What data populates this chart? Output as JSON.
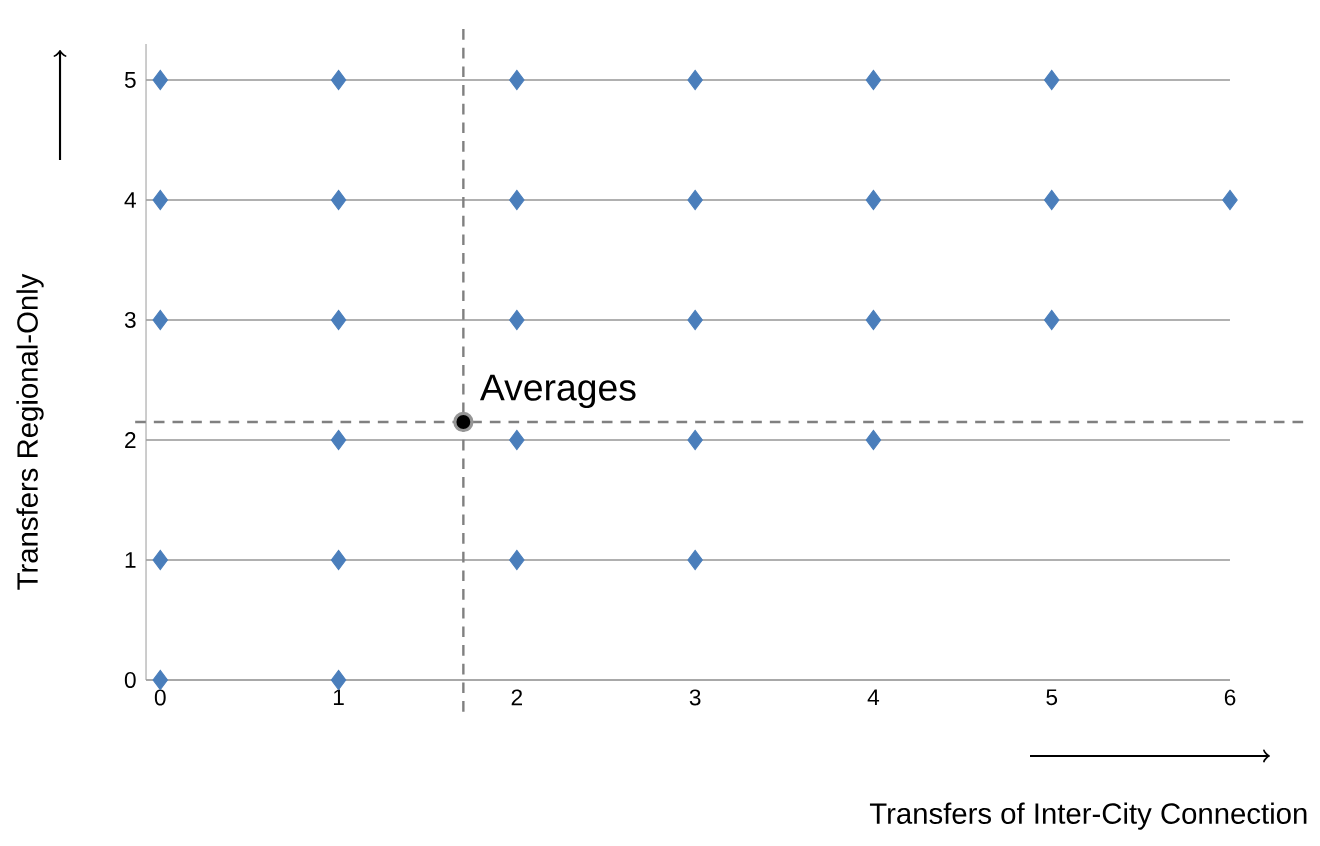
{
  "chart_data": {
    "type": "scatter",
    "xlabel": "Transfers of Inter-City Connection",
    "ylabel": "Transfers Regional-Only",
    "xlim": [
      -0.08,
      6
    ],
    "ylim": [
      0,
      5.3
    ],
    "xticks": [
      0,
      1,
      2,
      3,
      4,
      5,
      6
    ],
    "yticks": [
      0,
      1,
      2,
      3,
      4,
      5
    ],
    "grid": "y",
    "marker": "diamond",
    "series": [
      {
        "color": "#4a7ebb",
        "x": [
          0,
          1,
          2,
          3,
          4,
          5,
          0,
          1,
          2,
          3,
          4,
          5,
          6,
          0,
          1,
          2,
          3,
          4,
          5,
          1,
          2,
          3,
          4,
          0,
          1,
          2,
          3,
          0,
          1
        ],
        "values": [
          5,
          5,
          5,
          5,
          5,
          5,
          4,
          4,
          4,
          4,
          4,
          4,
          4,
          3,
          3,
          3,
          3,
          3,
          3,
          2,
          2,
          2,
          2,
          1,
          1,
          1,
          1,
          0,
          0
        ]
      },
      {
        "color": "#000000",
        "marker": "circle",
        "x": [
          1.7
        ],
        "values": [
          2.15
        ]
      }
    ],
    "ref_lines": [
      {
        "axis": "x",
        "value": 1.7,
        "color": "#808080",
        "line_style": "dashed"
      },
      {
        "axis": "y",
        "value": 2.15,
        "color": "#808080",
        "line_style": "dashed"
      }
    ],
    "annotations": [
      {
        "text": "Averages",
        "x": 1.7,
        "y": 2.15
      }
    ]
  }
}
